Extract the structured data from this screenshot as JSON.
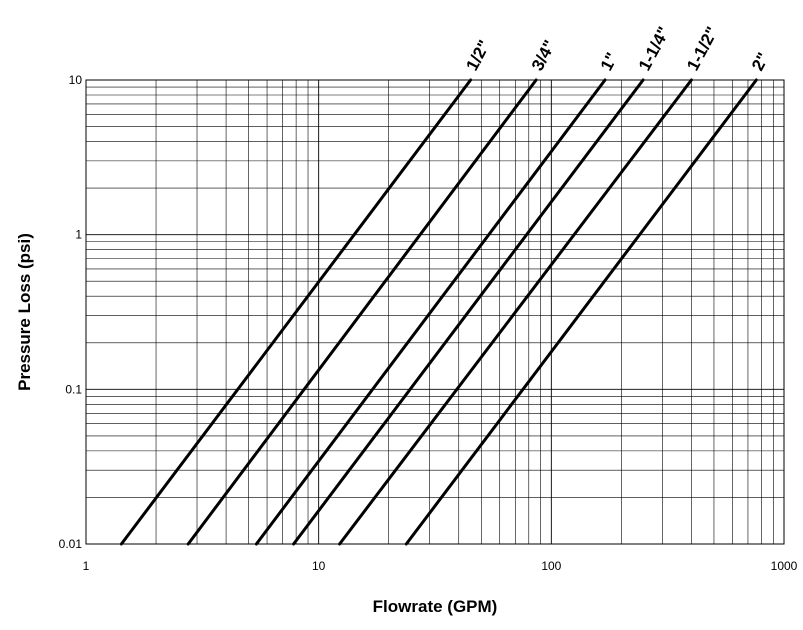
{
  "chart_data": {
    "type": "line",
    "title": "",
    "xlabel": "Flowrate (GPM)",
    "ylabel": "Pressure Loss (psi)",
    "xscale": "log",
    "yscale": "log",
    "xlim": [
      1,
      1000
    ],
    "ylim": [
      0.01,
      10
    ],
    "grid": true,
    "x_ticks": [
      {
        "value": 1,
        "label": "1"
      },
      {
        "value": 10,
        "label": "10"
      },
      {
        "value": 100,
        "label": "100"
      },
      {
        "value": 1000,
        "label": "1000"
      }
    ],
    "y_ticks": [
      {
        "value": 0.01,
        "label": "0.01"
      },
      {
        "value": 0.1,
        "label": "0.1"
      },
      {
        "value": 1,
        "label": "1"
      },
      {
        "value": 10,
        "label": "10"
      }
    ],
    "series": [
      {
        "name": "1/2\"",
        "x": [
          1.42,
          45
        ],
        "y": [
          0.01,
          10
        ]
      },
      {
        "name": "3/4\"",
        "x": [
          2.75,
          86
        ],
        "y": [
          0.01,
          10
        ]
      },
      {
        "name": "1\"",
        "x": [
          5.4,
          170
        ],
        "y": [
          0.01,
          10
        ]
      },
      {
        "name": "1-1/4\"",
        "x": [
          7.8,
          248
        ],
        "y": [
          0.01,
          10
        ]
      },
      {
        "name": "1-1/2\"",
        "x": [
          12.3,
          400
        ],
        "y": [
          0.01,
          10
        ]
      },
      {
        "name": "2\"",
        "x": [
          23.8,
          760
        ],
        "y": [
          0.01,
          10
        ]
      }
    ]
  }
}
